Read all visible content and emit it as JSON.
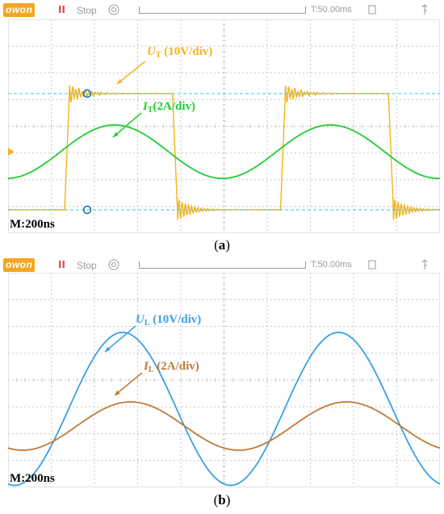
{
  "chart_data": [
    {
      "type": "line",
      "panel_label": "a",
      "header": {
        "logo": "owon",
        "run_state": "Stop",
        "pause_glyph": "II",
        "time_offset": "T:50.00ms"
      },
      "timebase": "M:200ns",
      "grid": true,
      "series": [
        {
          "name": "U_T (10V/div)",
          "symbol": "U",
          "subscript": "T",
          "unit_text": " (10V/div)",
          "color": "#f5b31b",
          "shape": "square-wave-with-ringing",
          "high_div": 2.5,
          "low_div": -2.5,
          "period_ns": 1000
        },
        {
          "name": "I_T(2A/div)",
          "symbol": "I",
          "subscript": "T",
          "unit_text": "(2A/div)",
          "color": "#22cc33",
          "shape": "sine",
          "amplitude_div": 1.0,
          "offset_div": 0,
          "period_ns": 1000
        }
      ],
      "cursors_color": "#3ec7d6"
    },
    {
      "type": "line",
      "panel_label": "b",
      "header": {
        "logo": "owon",
        "run_state": "Stop",
        "pause_glyph": "II",
        "time_offset": "T:50.00ms"
      },
      "timebase": "M:200ns",
      "grid": true,
      "series": [
        {
          "name": "U_L (10V/div)",
          "symbol": "U",
          "subscript": "L",
          "unit_text": " (10V/div)",
          "color": "#3aa0e6",
          "shape": "sine",
          "amplitude_div": 2.85,
          "offset_div": -0.4,
          "period_ns": 1000
        },
        {
          "name": "I_L (2A/div)",
          "symbol": "I",
          "subscript": "L",
          "unit_text": " (2A/div)",
          "color": "#c07a3a",
          "shape": "sine",
          "amplitude_div": 0.9,
          "offset_div": 0,
          "period_ns": 1000
        }
      ]
    }
  ]
}
